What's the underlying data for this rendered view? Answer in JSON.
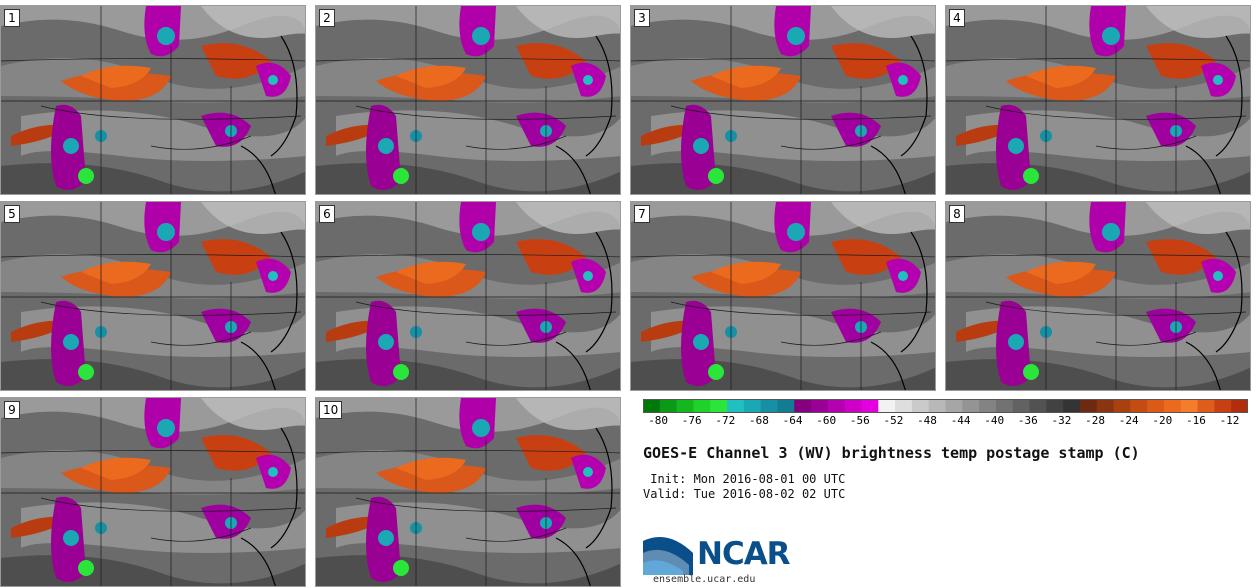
{
  "panels": [
    {
      "label": "1"
    },
    {
      "label": "2"
    },
    {
      "label": "3"
    },
    {
      "label": "4"
    },
    {
      "label": "5"
    },
    {
      "label": "6"
    },
    {
      "label": "7"
    },
    {
      "label": "8"
    },
    {
      "label": "9"
    },
    {
      "label": "10"
    }
  ],
  "colorbar": {
    "labels": [
      "-80",
      "-76",
      "-72",
      "-68",
      "-64",
      "-60",
      "-56",
      "-52",
      "-48",
      "-44",
      "-40",
      "-36",
      "-32",
      "-28",
      "-24",
      "-20",
      "-16",
      "-12"
    ],
    "colors": [
      "#00780a",
      "#0a9a16",
      "#12b81e",
      "#1ed22a",
      "#2ae63a",
      "#20c0c0",
      "#1aa8b4",
      "#1690a4",
      "#127c92",
      "#84007e",
      "#9a0094",
      "#b400ae",
      "#ce00c8",
      "#e400de",
      "#f2f2f2",
      "#dedede",
      "#cacaca",
      "#b8b8b8",
      "#a6a6a6",
      "#949494",
      "#838383",
      "#727272",
      "#626262",
      "#525252",
      "#424242",
      "#343434",
      "#6e2a10",
      "#8a3410",
      "#a84010",
      "#c44c12",
      "#dc5a18",
      "#ec6a1e",
      "#f47c2a",
      "#e05c1a",
      "#c84012",
      "#b02e0c"
    ]
  },
  "title": "GOES-E Channel 3 (WV) brightness temp postage stamp (C)",
  "init": " Init: Mon 2016-08-01 00 UTC",
  "valid": "Valid: Tue 2016-08-02 02 UTC",
  "logo": {
    "text": "NCAR",
    "url": "ensemble.ucar.edu",
    "color": "#0a4f8a"
  }
}
